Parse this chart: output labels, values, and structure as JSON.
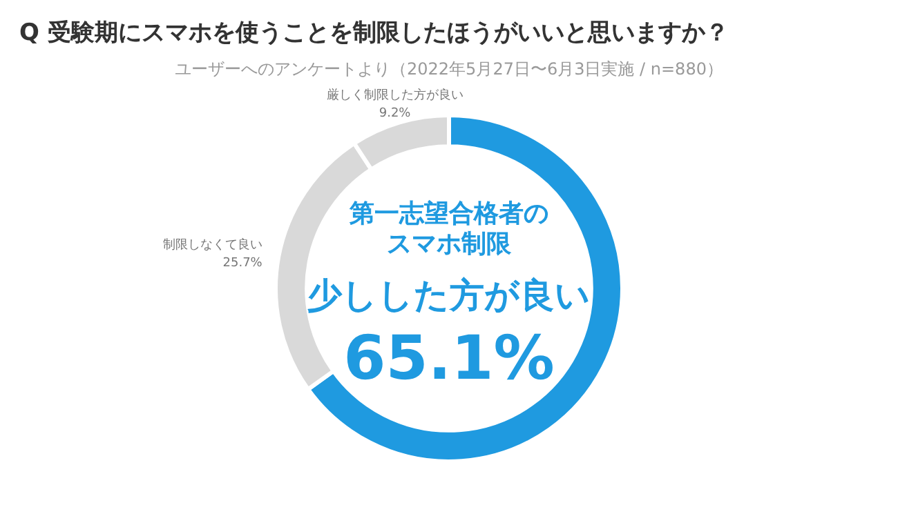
{
  "chart_data": {
    "type": "donut",
    "title": "Q 受験期にスマホを使うことを制限したほうがいいと思いますか？",
    "subtitle": "ユーザーへのアンケートより（2022年5月27日〜6月3日実施 / n=880）",
    "categories": [
      "少しした方が良い",
      "制限しなくて良い",
      "厳しく制限した方が良い"
    ],
    "values": [
      65.1,
      25.7,
      9.2
    ],
    "value_labels": [
      "65.1%",
      "25.7%",
      "9.2%"
    ],
    "colors": [
      "#1f9ae0",
      "#d9d9d9",
      "#d9d9d9"
    ],
    "annotations": [
      "第一志望合格者の",
      "スマホ制限"
    ],
    "legend": false
  }
}
